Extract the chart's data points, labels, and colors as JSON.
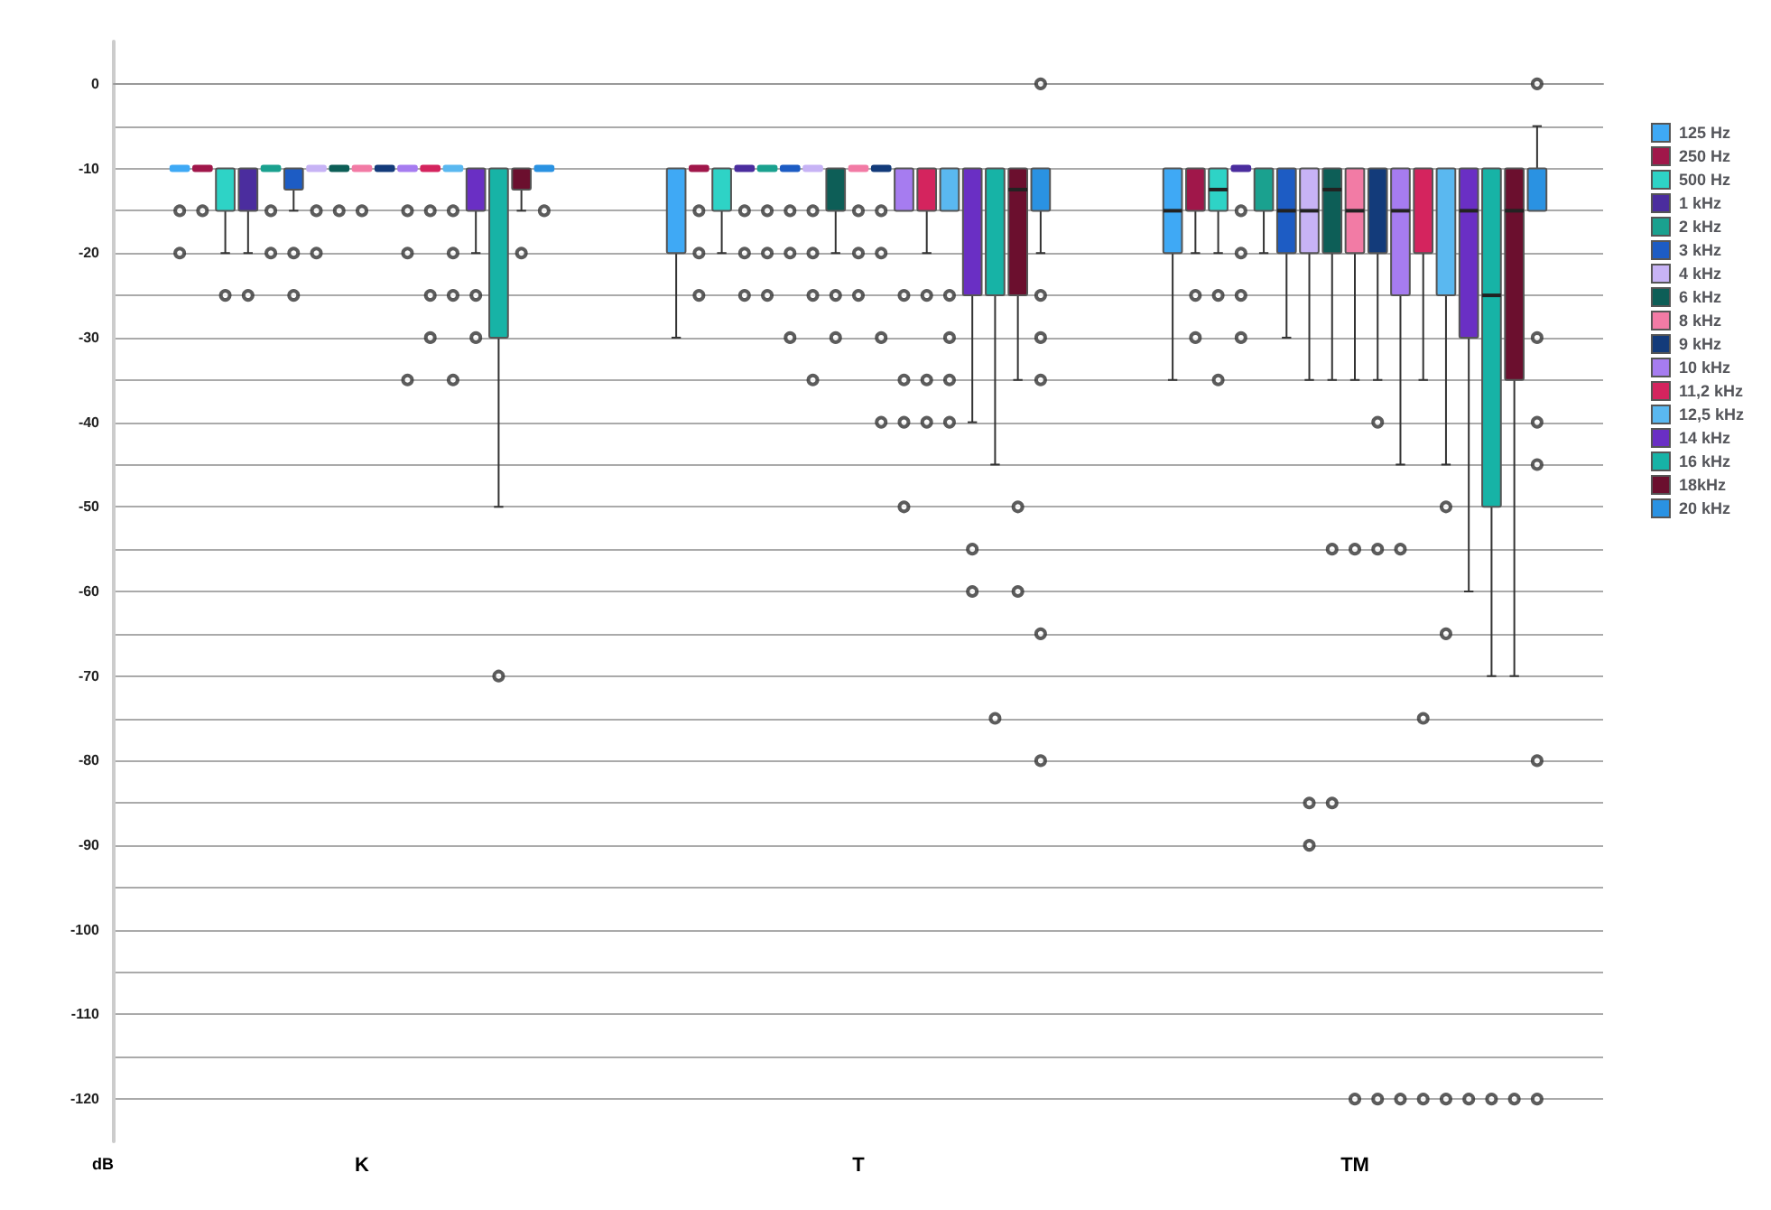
{
  "chart_data": {
    "type": "box",
    "ylabel": "dB",
    "categories": [
      "K",
      "T",
      "TM"
    ],
    "ylim": [
      -125,
      5
    ],
    "yticks": [
      0,
      {
        "value": -5,
        "label": null
      },
      -10,
      {
        "value": -15,
        "label": null
      },
      -20,
      {
        "value": -25,
        "label": null
      },
      -30,
      {
        "value": -35,
        "label": null
      },
      -40,
      {
        "value": -45,
        "label": null
      },
      -50,
      {
        "value": -55,
        "label": null
      },
      -60,
      {
        "value": -65,
        "label": null
      },
      -70,
      {
        "value": -75,
        "label": null
      },
      -80,
      {
        "value": -85,
        "label": null
      },
      -90,
      {
        "value": -95,
        "label": null
      },
      -100,
      {
        "value": -105,
        "label": null
      },
      -110,
      {
        "value": -115,
        "label": null
      },
      -120
    ],
    "grid": "y",
    "legend": "right",
    "series": [
      {
        "name": "125 Hz",
        "color": "#3fa9f5",
        "boxes": [
          {
            "low": -10,
            "q1": -10,
            "median": -10,
            "q3": -10,
            "high": -10,
            "outliers": [
              -15,
              -20
            ]
          },
          {
            "low": -30,
            "q1": -20,
            "median": -10,
            "q3": -10,
            "high": -10
          },
          {
            "low": -35,
            "q1": -20,
            "median": -15,
            "q3": -10,
            "high": -10
          }
        ]
      },
      {
        "name": "250 Hz",
        "color": "#a0174a",
        "boxes": [
          {
            "low": -10,
            "q1": -10,
            "median": -10,
            "q3": -10,
            "high": -10,
            "outliers": [
              -15
            ]
          },
          {
            "low": -10,
            "q1": -10,
            "median": -10,
            "q3": -10,
            "high": -10,
            "outliers": [
              -15,
              -20,
              -25
            ]
          },
          {
            "low": -20,
            "q1": -15,
            "median": -10,
            "q3": -10,
            "high": -10,
            "outliers": [
              -25,
              -30
            ]
          }
        ]
      },
      {
        "name": "500 Hz",
        "color": "#2ed3c6",
        "boxes": [
          {
            "low": -20,
            "q1": -15,
            "median": -10,
            "q3": -10,
            "high": -10,
            "outliers": [
              -25
            ]
          },
          {
            "low": -20,
            "q1": -15,
            "median": -10,
            "q3": -10,
            "high": -10
          },
          {
            "low": -20,
            "q1": -15,
            "median": -12.5,
            "q3": -10,
            "high": -10,
            "outliers": [
              -25,
              -35
            ]
          }
        ]
      },
      {
        "name": "1 kHz",
        "color": "#4b2d9e",
        "boxes": [
          {
            "low": -20,
            "q1": -15,
            "median": -10,
            "q3": -10,
            "high": -10,
            "outliers": [
              -25
            ]
          },
          {
            "low": -10,
            "q1": -10,
            "median": -10,
            "q3": -10,
            "high": -10,
            "outliers": [
              -15,
              -20,
              -25
            ]
          },
          {
            "low": -10,
            "q1": -10,
            "median": -10,
            "q3": -10,
            "high": -10,
            "outliers": [
              -15,
              -20,
              -25,
              -30
            ]
          }
        ]
      },
      {
        "name": "2 kHz",
        "color": "#1aa18f",
        "boxes": [
          {
            "low": -10,
            "q1": -10,
            "median": -10,
            "q3": -10,
            "high": -10,
            "outliers": [
              -15,
              -20
            ]
          },
          {
            "low": -10,
            "q1": -10,
            "median": -10,
            "q3": -10,
            "high": -10,
            "outliers": [
              -15,
              -20,
              -25
            ]
          },
          {
            "low": -20,
            "q1": -15,
            "median": -10,
            "q3": -10,
            "high": -10
          }
        ]
      },
      {
        "name": "3 kHz",
        "color": "#1d5cc4",
        "boxes": [
          {
            "low": -15,
            "q1": -12.5,
            "median": -10,
            "q3": -10,
            "high": -10,
            "outliers": [
              -20,
              -25
            ]
          },
          {
            "low": -10,
            "q1": -10,
            "median": -10,
            "q3": -10,
            "high": -10,
            "outliers": [
              -15,
              -20,
              -30
            ]
          },
          {
            "low": -30,
            "q1": -20,
            "median": -15,
            "q3": -10,
            "high": -10
          }
        ]
      },
      {
        "name": "4 kHz",
        "color": "#c7b3f5",
        "boxes": [
          {
            "low": -10,
            "q1": -10,
            "median": -10,
            "q3": -10,
            "high": -10,
            "outliers": [
              -15,
              -20
            ]
          },
          {
            "low": -10,
            "q1": -10,
            "median": -10,
            "q3": -10,
            "high": -10,
            "outliers": [
              -15,
              -20,
              -25,
              -35
            ]
          },
          {
            "low": -35,
            "q1": -20,
            "median": -15,
            "q3": -10,
            "high": -10,
            "outliers": [
              -85,
              -90
            ]
          }
        ]
      },
      {
        "name": "6 kHz",
        "color": "#0d5e57",
        "boxes": [
          {
            "low": -10,
            "q1": -10,
            "median": -10,
            "q3": -10,
            "high": -10,
            "outliers": [
              -15
            ]
          },
          {
            "low": -20,
            "q1": -15,
            "median": -10,
            "q3": -10,
            "high": -10,
            "outliers": [
              -25,
              -30
            ]
          },
          {
            "low": -35,
            "q1": -20,
            "median": -12.5,
            "q3": -10,
            "high": -10,
            "outliers": [
              -55,
              -85
            ]
          }
        ]
      },
      {
        "name": "8 kHz",
        "color": "#f27ba5",
        "boxes": [
          {
            "low": -10,
            "q1": -10,
            "median": -10,
            "q3": -10,
            "high": -10,
            "outliers": [
              -15
            ]
          },
          {
            "low": -10,
            "q1": -10,
            "median": -10,
            "q3": -10,
            "high": -10,
            "outliers": [
              -15,
              -20,
              -25
            ]
          },
          {
            "low": -35,
            "q1": -20,
            "median": -15,
            "q3": -10,
            "high": -10,
            "outliers": [
              -55,
              -120
            ]
          }
        ]
      },
      {
        "name": "9 kHz",
        "color": "#133b7a",
        "boxes": [
          {
            "low": -10,
            "q1": -10,
            "median": -10,
            "q3": -10,
            "high": -10
          },
          {
            "low": -10,
            "q1": -10,
            "median": -10,
            "q3": -10,
            "high": -10,
            "outliers": [
              -15,
              -20,
              -30,
              -40
            ]
          },
          {
            "low": -35,
            "q1": -20,
            "median": -10,
            "q3": -10,
            "high": -10,
            "outliers": [
              -40,
              -55,
              -120
            ]
          }
        ]
      },
      {
        "name": "10 kHz",
        "color": "#a67cf0",
        "boxes": [
          {
            "low": -10,
            "q1": -10,
            "median": -10,
            "q3": -10,
            "high": -10,
            "outliers": [
              -15,
              -20,
              -35
            ]
          },
          {
            "low": -15,
            "q1": -15,
            "median": -10,
            "q3": -10,
            "high": -10,
            "outliers": [
              -25,
              -35,
              -40,
              -50
            ]
          },
          {
            "low": -45,
            "q1": -25,
            "median": -15,
            "q3": -10,
            "high": -10,
            "outliers": [
              -55,
              -120
            ]
          }
        ]
      },
      {
        "name": "11,2 kHz",
        "color": "#d4245e",
        "boxes": [
          {
            "low": -10,
            "q1": -10,
            "median": -10,
            "q3": -10,
            "high": -10,
            "outliers": [
              -15,
              -25,
              -30
            ]
          },
          {
            "low": -20,
            "q1": -15,
            "median": -10,
            "q3": -10,
            "high": -10,
            "outliers": [
              -25,
              -35,
              -40
            ]
          },
          {
            "low": -35,
            "q1": -20,
            "median": -10,
            "q3": -10,
            "high": -10,
            "outliers": [
              -75,
              -120
            ]
          }
        ]
      },
      {
        "name": "12,5 kHz",
        "color": "#5ab8f0",
        "boxes": [
          {
            "low": -10,
            "q1": -10,
            "median": -10,
            "q3": -10,
            "high": -10,
            "outliers": [
              -15,
              -20,
              -25,
              -35
            ]
          },
          {
            "low": -15,
            "q1": -15,
            "median": -10,
            "q3": -10,
            "high": -10,
            "outliers": [
              -25,
              -30,
              -35,
              -40
            ]
          },
          {
            "low": -45,
            "q1": -25,
            "median": -10,
            "q3": -10,
            "high": -10,
            "outliers": [
              -50,
              -65,
              -120
            ]
          }
        ]
      },
      {
        "name": "14 kHz",
        "color": "#6a2fc4",
        "boxes": [
          {
            "low": -20,
            "q1": -15,
            "median": -10,
            "q3": -10,
            "high": -10,
            "outliers": [
              -25,
              -30
            ]
          },
          {
            "low": -40,
            "q1": -25,
            "median": -10,
            "q3": -10,
            "high": -10,
            "outliers": [
              -55,
              -60
            ]
          },
          {
            "low": -60,
            "q1": -30,
            "median": -15,
            "q3": -10,
            "high": -10,
            "outliers": [
              -120
            ]
          }
        ]
      },
      {
        "name": "16 kHz",
        "color": "#17b3a6",
        "boxes": [
          {
            "low": -50,
            "q1": -30,
            "median": -10,
            "q3": -10,
            "high": -10,
            "outliers": [
              -70
            ]
          },
          {
            "low": -45,
            "q1": -25,
            "median": -10,
            "q3": -10,
            "high": -10,
            "outliers": [
              -75
            ]
          },
          {
            "low": -70,
            "q1": -50,
            "median": -25,
            "q3": -10,
            "high": -10,
            "outliers": [
              -120
            ]
          }
        ]
      },
      {
        "name": "18kHz",
        "color": "#6b0f2e",
        "boxes": [
          {
            "low": -15,
            "q1": -12.5,
            "median": -10,
            "q3": -10,
            "high": -10,
            "outliers": [
              -20
            ]
          },
          {
            "low": -35,
            "q1": -25,
            "median": -12.5,
            "q3": -10,
            "high": -10,
            "outliers": [
              -50,
              -60
            ]
          },
          {
            "low": -70,
            "q1": -35,
            "median": -15,
            "q3": -10,
            "high": -10,
            "outliers": [
              -120
            ]
          }
        ]
      },
      {
        "name": "20 kHz",
        "color": "#2a92e2",
        "boxes": [
          {
            "low": -10,
            "q1": -10,
            "median": -10,
            "q3": -10,
            "high": -10,
            "outliers": [
              -15
            ]
          },
          {
            "low": -20,
            "q1": -15,
            "median": -10,
            "q3": -10,
            "high": -10,
            "outliers": [
              0,
              -25,
              -30,
              -35,
              -65,
              -80
            ]
          },
          {
            "low": -15,
            "q1": -15,
            "median": -10,
            "q3": -10,
            "high": -5,
            "outliers": [
              0,
              -30,
              -40,
              -45,
              -80,
              -120
            ]
          }
        ]
      }
    ]
  }
}
